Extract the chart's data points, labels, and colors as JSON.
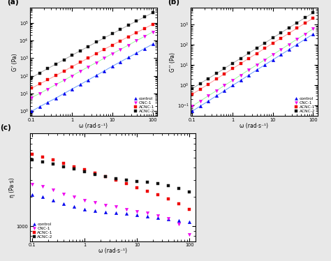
{
  "omega": [
    0.1,
    0.158,
    0.251,
    0.398,
    0.631,
    1.0,
    1.585,
    2.512,
    3.981,
    6.31,
    10.0,
    15.85,
    25.12,
    39.81,
    63.1,
    100.0
  ],
  "panel_a": {
    "control": [
      1.0,
      1.8,
      3.2,
      5.5,
      10.0,
      18.0,
      32.0,
      58.0,
      105.0,
      190.0,
      350.0,
      620.0,
      1100.0,
      1950.0,
      3500.0,
      6200.0
    ],
    "CNC1": [
      6.0,
      10.0,
      18.0,
      32.0,
      56.0,
      100.0,
      180.0,
      320.0,
      560.0,
      1000.0,
      1800.0,
      3100.0,
      5500.0,
      9800.0,
      17000.0,
      30000.0
    ],
    "ACNC1": [
      20.0,
      35.0,
      60.0,
      105.0,
      185.0,
      330.0,
      580.0,
      1000.0,
      1800.0,
      3200.0,
      5500.0,
      9500.0,
      16500.0,
      28000.0,
      48000.0,
      82000.0
    ],
    "ACNC2": [
      80.0,
      145.0,
      260.0,
      460.0,
      820.0,
      1450.0,
      2600.0,
      4500.0,
      8000.0,
      14000.0,
      24000.0,
      42000.0,
      73000.0,
      125000.0,
      215000.0,
      370000.0
    ]
  },
  "panel_b": {
    "control": [
      0.05,
      0.09,
      0.16,
      0.29,
      0.52,
      0.95,
      1.7,
      3.1,
      5.6,
      10.0,
      18.0,
      32.0,
      58.0,
      105.0,
      190.0,
      340.0
    ],
    "CNC1": [
      0.09,
      0.16,
      0.29,
      0.52,
      0.95,
      1.7,
      3.1,
      5.6,
      10.0,
      18.0,
      32.0,
      58.0,
      105.0,
      190.0,
      340.0,
      620.0
    ],
    "ACNC1": [
      0.35,
      0.62,
      1.1,
      2.0,
      3.6,
      6.5,
      11.5,
      21.0,
      37.0,
      67.0,
      120.0,
      210.0,
      375.0,
      670.0,
      1200.0,
      2100.0
    ],
    "ACNC2": [
      0.65,
      1.2,
      2.1,
      3.7,
      6.7,
      12.0,
      21.0,
      38.0,
      68.0,
      122.0,
      220.0,
      390.0,
      700.0,
      1250.0,
      2200.0,
      3900.0
    ]
  },
  "panel_c": {
    "control": [
      2100.0,
      2000.0,
      1850.0,
      1700.0,
      1600.0,
      1500.0,
      1450.0,
      1400.0,
      1380.0,
      1350.0,
      1300.0,
      1270.0,
      1230.0,
      1190.0,
      1150.0,
      1100.0
    ],
    "CNC1": [
      2700.0,
      2550.0,
      2350.0,
      2150.0,
      2000.0,
      1850.0,
      1750.0,
      1650.0,
      1580.0,
      1500.0,
      1430.0,
      1370.0,
      1290.0,
      1200.0,
      1050.0,
      820.0
    ],
    "ACNC1": [
      5500.0,
      5100.0,
      4800.0,
      4400.0,
      4100.0,
      3800.0,
      3500.0,
      3250.0,
      3000.0,
      2750.0,
      2500.0,
      2300.0,
      2100.0,
      1900.0,
      1700.0,
      1500.0
    ],
    "ACNC2": [
      4800.0,
      4600.0,
      4350.0,
      4100.0,
      3850.0,
      3600.0,
      3400.0,
      3250.0,
      3100.0,
      3000.0,
      2900.0,
      2820.0,
      2720.0,
      2600.0,
      2450.0,
      2250.0
    ]
  },
  "colors": {
    "control": "#0000EE",
    "CNC1": "#EE00EE",
    "ACNC1": "#EE0000",
    "ACNC2": "#111111"
  },
  "line_colors": {
    "control": "#6699FF",
    "CNC1": "#99FF99",
    "ACNC1": "#FF9999",
    "ACNC2": "#AAAAAA"
  },
  "labels": {
    "control": "control",
    "CNC1": "CNC-1",
    "ACNC1": "ACNC-1",
    "ACNC2": "ACNC-2"
  },
  "xlabel": "ω (rad⋅s⁻¹)",
  "ylabel_a": "G’ (Pa)",
  "ylabel_b": "G’’ (Pa)",
  "ylabel_c": "η (Pa·s)"
}
